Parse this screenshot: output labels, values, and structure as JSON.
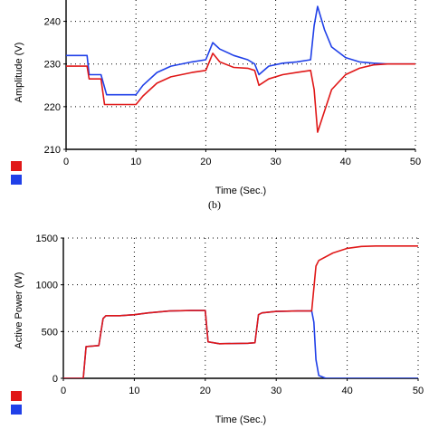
{
  "caption": "(b)",
  "colors": {
    "red": "#e01818",
    "blue": "#2040e8"
  },
  "chart_data": [
    {
      "type": "line",
      "xlabel": "Time (Sec.)",
      "ylabel": "Amplitude (V)",
      "xlim": [
        0,
        50
      ],
      "ylim": [
        210,
        245
      ],
      "xticks": [
        0,
        10,
        20,
        30,
        40,
        50
      ],
      "yticks": [
        210,
        220,
        230,
        240
      ],
      "grid": true,
      "legend": "swatches bottom-left",
      "series": [
        {
          "color": "red",
          "points": [
            [
              0,
              229.5
            ],
            [
              3,
              229.5
            ],
            [
              3.3,
              226.5
            ],
            [
              5,
              226.5
            ],
            [
              5.5,
              220.5
            ],
            [
              10,
              220.5
            ],
            [
              11,
              222.5
            ],
            [
              13,
              225.5
            ],
            [
              15,
              227
            ],
            [
              18,
              228
            ],
            [
              20,
              228.5
            ],
            [
              21,
              232.5
            ],
            [
              22,
              230.5
            ],
            [
              24,
              229.2
            ],
            [
              26,
              229
            ],
            [
              27,
              228.5
            ],
            [
              27.6,
              225
            ],
            [
              29,
              226.5
            ],
            [
              31,
              227.5
            ],
            [
              33,
              228
            ],
            [
              35,
              228.5
            ],
            [
              35.5,
              224
            ],
            [
              36,
              214
            ],
            [
              37,
              219
            ],
            [
              38,
              224
            ],
            [
              40,
              227.5
            ],
            [
              42,
              229
            ],
            [
              44,
              229.8
            ],
            [
              46,
              230
            ],
            [
              50,
              230
            ]
          ]
        },
        {
          "color": "blue",
          "points": [
            [
              0,
              232
            ],
            [
              3,
              232
            ],
            [
              3.3,
              227.5
            ],
            [
              5,
              227.5
            ],
            [
              5.8,
              222.8
            ],
            [
              10,
              222.8
            ],
            [
              11,
              225
            ],
            [
              13,
              228
            ],
            [
              15,
              229.5
            ],
            [
              18,
              230.5
            ],
            [
              20,
              231
            ],
            [
              21,
              235
            ],
            [
              22,
              233.5
            ],
            [
              24,
              232
            ],
            [
              26,
              231
            ],
            [
              27,
              230
            ],
            [
              27.6,
              227.5
            ],
            [
              29,
              229.5
            ],
            [
              31,
              230.2
            ],
            [
              33,
              230.5
            ],
            [
              35,
              231
            ],
            [
              35.5,
              239
            ],
            [
              36,
              243.5
            ],
            [
              37,
              238
            ],
            [
              38,
              234
            ],
            [
              40,
              231.5
            ],
            [
              42,
              230.5
            ],
            [
              44,
              230.2
            ],
            [
              46,
              230
            ],
            [
              50,
              230
            ]
          ]
        }
      ]
    },
    {
      "type": "line",
      "xlabel": "Time (Sec.)",
      "ylabel": "Active Power (W)",
      "xlim": [
        0,
        50
      ],
      "ylim": [
        0,
        1500
      ],
      "xticks": [
        0,
        10,
        20,
        30,
        40,
        50
      ],
      "yticks": [
        0,
        500,
        1000,
        1500
      ],
      "grid": true,
      "legend": "swatches bottom-left",
      "series": [
        {
          "color": "red",
          "points": [
            [
              0,
              0
            ],
            [
              2.8,
              0
            ],
            [
              3.2,
              340
            ],
            [
              5,
              350
            ],
            [
              5.6,
              640
            ],
            [
              6,
              670
            ],
            [
              8,
              670
            ],
            [
              10,
              680
            ],
            [
              12,
              700
            ],
            [
              15,
              720
            ],
            [
              18,
              725
            ],
            [
              20,
              725
            ],
            [
              20.4,
              390
            ],
            [
              22,
              370
            ],
            [
              26,
              375
            ],
            [
              27,
              380
            ],
            [
              27.5,
              680
            ],
            [
              28,
              700
            ],
            [
              30,
              715
            ],
            [
              33,
              720
            ],
            [
              35,
              720
            ],
            [
              35.6,
              1200
            ],
            [
              36,
              1260
            ],
            [
              38,
              1340
            ],
            [
              40,
              1390
            ],
            [
              42,
              1410
            ],
            [
              44,
              1415
            ],
            [
              46,
              1415
            ],
            [
              50,
              1415
            ]
          ]
        },
        {
          "color": "blue",
          "points": [
            [
              0,
              0
            ],
            [
              2.8,
              0
            ],
            [
              3.2,
              340
            ],
            [
              5,
              350
            ],
            [
              5.6,
              640
            ],
            [
              6,
              670
            ],
            [
              8,
              670
            ],
            [
              10,
              680
            ],
            [
              12,
              700
            ],
            [
              15,
              720
            ],
            [
              18,
              725
            ],
            [
              20,
              725
            ],
            [
              20.4,
              390
            ],
            [
              22,
              370
            ],
            [
              26,
              375
            ],
            [
              27,
              380
            ],
            [
              27.5,
              680
            ],
            [
              28,
              700
            ],
            [
              30,
              715
            ],
            [
              33,
              720
            ],
            [
              35,
              720
            ],
            [
              35.3,
              600
            ],
            [
              35.6,
              200
            ],
            [
              36,
              30
            ],
            [
              37,
              0
            ],
            [
              50,
              0
            ]
          ]
        }
      ]
    }
  ]
}
